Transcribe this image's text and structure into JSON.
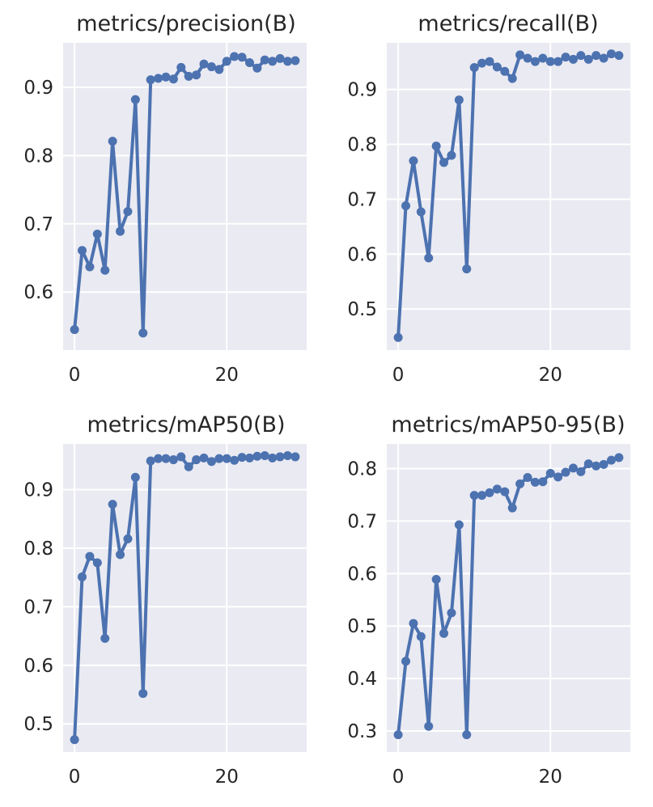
{
  "chart_data": [
    {
      "type": "line",
      "title": "metrics/precision(B)",
      "x": [
        0,
        1,
        2,
        3,
        4,
        5,
        6,
        7,
        8,
        9,
        10,
        11,
        12,
        13,
        14,
        15,
        16,
        17,
        18,
        19,
        20,
        21,
        22,
        23,
        24,
        25,
        26,
        27,
        28,
        29
      ],
      "values": [
        0.545,
        0.661,
        0.637,
        0.685,
        0.632,
        0.821,
        0.689,
        0.718,
        0.882,
        0.54,
        0.911,
        0.913,
        0.915,
        0.912,
        0.929,
        0.916,
        0.918,
        0.934,
        0.93,
        0.926,
        0.938,
        0.945,
        0.944,
        0.936,
        0.928,
        0.94,
        0.938,
        0.942,
        0.938,
        0.939
      ],
      "xlim": [
        -1.5,
        30.5
      ],
      "ylim": [
        0.515,
        0.965
      ],
      "xticks": [
        0,
        20
      ],
      "yticks": [
        0.6,
        0.7,
        0.8,
        0.9
      ],
      "ytick_labels": [
        "0.6",
        "0.7",
        "0.8",
        "0.9"
      ],
      "color": "#4c72b0",
      "grid": true
    },
    {
      "type": "line",
      "title": "metrics/recall(B)",
      "x": [
        0,
        1,
        2,
        3,
        4,
        5,
        6,
        7,
        8,
        9,
        10,
        11,
        12,
        13,
        14,
        15,
        16,
        17,
        18,
        19,
        20,
        21,
        22,
        23,
        24,
        25,
        26,
        27,
        28,
        29
      ],
      "values": [
        0.448,
        0.688,
        0.77,
        0.677,
        0.593,
        0.797,
        0.767,
        0.78,
        0.881,
        0.573,
        0.94,
        0.948,
        0.951,
        0.941,
        0.933,
        0.92,
        0.963,
        0.957,
        0.951,
        0.957,
        0.951,
        0.951,
        0.959,
        0.955,
        0.962,
        0.955,
        0.962,
        0.957,
        0.965,
        0.962
      ],
      "xlim": [
        -1.5,
        30.5
      ],
      "ylim": [
        0.425,
        0.985
      ],
      "xticks": [
        0,
        20
      ],
      "yticks": [
        0.5,
        0.6,
        0.7,
        0.8,
        0.9
      ],
      "ytick_labels": [
        "0.5",
        "0.6",
        "0.7",
        "0.8",
        "0.9"
      ],
      "color": "#4c72b0",
      "grid": true
    },
    {
      "type": "line",
      "title": "metrics/mAP50(B)",
      "x": [
        0,
        1,
        2,
        3,
        4,
        5,
        6,
        7,
        8,
        9,
        10,
        11,
        12,
        13,
        14,
        15,
        16,
        17,
        18,
        19,
        20,
        21,
        22,
        23,
        24,
        25,
        26,
        27,
        28,
        29
      ],
      "values": [
        0.473,
        0.751,
        0.786,
        0.775,
        0.646,
        0.875,
        0.789,
        0.816,
        0.921,
        0.552,
        0.949,
        0.953,
        0.953,
        0.951,
        0.956,
        0.939,
        0.951,
        0.954,
        0.948,
        0.953,
        0.953,
        0.95,
        0.955,
        0.954,
        0.957,
        0.958,
        0.954,
        0.956,
        0.958,
        0.956
      ],
      "xlim": [
        -1.5,
        30.5
      ],
      "ylim": [
        0.452,
        0.978
      ],
      "xticks": [
        0,
        20
      ],
      "yticks": [
        0.5,
        0.6,
        0.7,
        0.8,
        0.9
      ],
      "ytick_labels": [
        "0.5",
        "0.6",
        "0.7",
        "0.8",
        "0.9"
      ],
      "color": "#4c72b0",
      "grid": true
    },
    {
      "type": "line",
      "title": "metrics/mAP50-95(B)",
      "x": [
        0,
        1,
        2,
        3,
        4,
        5,
        6,
        7,
        8,
        9,
        10,
        11,
        12,
        13,
        14,
        15,
        16,
        17,
        18,
        19,
        20,
        21,
        22,
        23,
        24,
        25,
        26,
        27,
        28,
        29
      ],
      "values": [
        0.293,
        0.433,
        0.505,
        0.48,
        0.309,
        0.589,
        0.486,
        0.525,
        0.693,
        0.293,
        0.749,
        0.749,
        0.754,
        0.761,
        0.756,
        0.725,
        0.771,
        0.783,
        0.774,
        0.775,
        0.791,
        0.784,
        0.793,
        0.801,
        0.794,
        0.809,
        0.805,
        0.808,
        0.816,
        0.821
      ],
      "xlim": [
        -1.5,
        30.5
      ],
      "ylim": [
        0.26,
        0.847
      ],
      "xticks": [
        0,
        20
      ],
      "yticks": [
        0.3,
        0.4,
        0.5,
        0.6,
        0.7,
        0.8
      ],
      "ytick_labels": [
        "0.3",
        "0.4",
        "0.5",
        "0.6",
        "0.7",
        "0.8"
      ],
      "color": "#4c72b0",
      "grid": true
    }
  ]
}
